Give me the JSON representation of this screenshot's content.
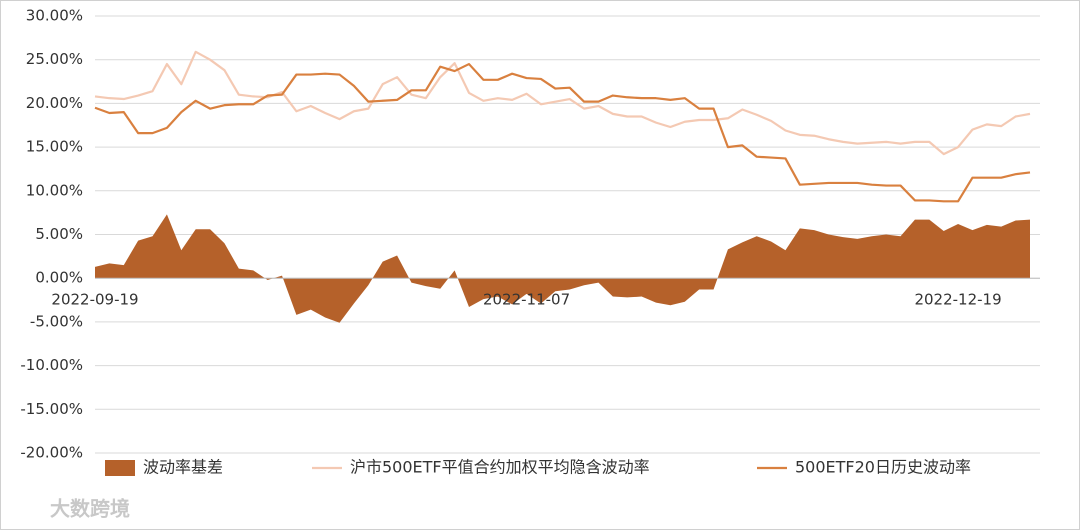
{
  "chart_data": {
    "type": "line",
    "categories": [
      "2022-09-19",
      null,
      null,
      null,
      null,
      null,
      null,
      null,
      null,
      null,
      null,
      null,
      null,
      null,
      null,
      null,
      null,
      null,
      null,
      null,
      null,
      null,
      null,
      null,
      null,
      null,
      null,
      null,
      null,
      null,
      "2022-11-07",
      null,
      null,
      null,
      null,
      null,
      null,
      null,
      null,
      null,
      null,
      null,
      null,
      null,
      null,
      null,
      null,
      null,
      null,
      null,
      null,
      null,
      null,
      null,
      null,
      null,
      null,
      null,
      null,
      null,
      "2022-12-19",
      null,
      null,
      null,
      null,
      null
    ],
    "series": [
      {
        "name": "波动率基差",
        "type": "area",
        "color": "#b5612a",
        "values": [
          1.3,
          1.7,
          1.5,
          4.3,
          4.8,
          7.3,
          3.2,
          5.6,
          5.6,
          4.0,
          1.1,
          0.9,
          -0.2,
          0.3,
          -4.2,
          -3.6,
          -4.5,
          -5.1,
          -2.9,
          -0.8,
          1.9,
          2.6,
          -0.5,
          -0.9,
          -1.2,
          0.9,
          -3.3,
          -2.4,
          -2.1,
          -3.0,
          -1.8,
          -2.9,
          -1.5,
          -1.3,
          -0.8,
          -0.5,
          -2.1,
          -2.2,
          -2.1,
          -2.8,
          -3.1,
          -2.7,
          -1.3,
          -1.3,
          3.3,
          4.1,
          4.8,
          4.2,
          3.2,
          5.7,
          5.5,
          5.0,
          4.7,
          4.5,
          4.8,
          5.0,
          4.8,
          6.7,
          6.7,
          5.4,
          6.2,
          5.5,
          6.1,
          5.9,
          6.6,
          6.7
        ]
      },
      {
        "name": "沪市500ETF平值合约加权平均隐含波动率",
        "type": "line",
        "color": "#f4c9b3",
        "values": [
          20.8,
          20.6,
          20.5,
          20.9,
          21.4,
          24.5,
          22.2,
          25.9,
          25.0,
          23.8,
          21.0,
          20.8,
          20.7,
          21.3,
          19.1,
          19.7,
          18.9,
          18.2,
          19.1,
          19.4,
          22.2,
          23.0,
          21.0,
          20.6,
          23.0,
          24.6,
          21.2,
          20.3,
          20.6,
          20.4,
          21.1,
          19.9,
          20.2,
          20.5,
          19.4,
          19.7,
          18.8,
          18.5,
          18.5,
          17.8,
          17.3,
          17.9,
          18.1,
          18.1,
          18.3,
          19.3,
          18.7,
          18.0,
          16.9,
          16.4,
          16.3,
          15.9,
          15.6,
          15.4,
          15.5,
          15.6,
          15.4,
          15.6,
          15.6,
          14.2,
          15.0,
          17.0,
          17.6,
          17.4,
          18.5,
          18.8
        ]
      },
      {
        "name": "500ETF20日历史波动率",
        "type": "line",
        "color": "#d9803f",
        "values": [
          19.5,
          18.9,
          19.0,
          16.6,
          16.6,
          17.2,
          19.0,
          20.3,
          19.4,
          19.8,
          19.9,
          19.9,
          20.9,
          21.0,
          23.3,
          23.3,
          23.4,
          23.3,
          22.0,
          20.2,
          20.3,
          20.4,
          21.5,
          21.5,
          24.2,
          23.7,
          24.5,
          22.7,
          22.7,
          23.4,
          22.9,
          22.8,
          21.7,
          21.8,
          20.2,
          20.2,
          20.9,
          20.7,
          20.6,
          20.6,
          20.4,
          20.6,
          19.4,
          19.4,
          15.0,
          15.2,
          13.9,
          13.8,
          13.7,
          10.7,
          10.8,
          10.9,
          10.9,
          10.9,
          10.7,
          10.6,
          10.6,
          8.9,
          8.9,
          8.8,
          8.8,
          11.5,
          11.5,
          11.5,
          11.9,
          12.1
        ]
      }
    ],
    "ylim": [
      -20,
      30
    ],
    "yticks": [
      {
        "value": -20,
        "label": "-20.00%"
      },
      {
        "value": -15,
        "label": "-15.00%"
      },
      {
        "value": -10,
        "label": "-10.00%"
      },
      {
        "value": -5,
        "label": "-5.00%"
      },
      {
        "value": 0,
        "label": "0.00%"
      },
      {
        "value": 5,
        "label": "5.00%"
      },
      {
        "value": 10,
        "label": "10.00%"
      },
      {
        "value": 15,
        "label": "15.00%"
      },
      {
        "value": 20,
        "label": "20.00%"
      },
      {
        "value": 25,
        "label": "25.00%"
      },
      {
        "value": 30,
        "label": "30.00%"
      }
    ],
    "grid": true,
    "legend": "bottom",
    "watermark": "大数跨境"
  }
}
